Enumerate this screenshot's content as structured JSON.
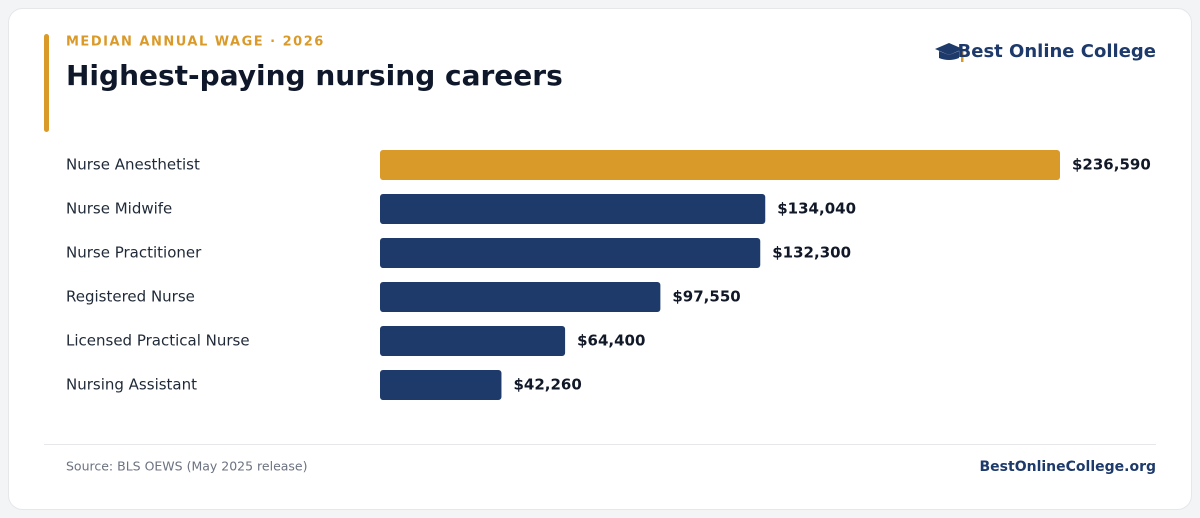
{
  "chart_data": {
    "type": "bar",
    "subtitle": "MEDIAN ANNUAL WAGE · 2026",
    "title": "Highest-paying nursing careers",
    "brand": "Best Online College",
    "categories": [
      "Nurse Anesthetist",
      "Nurse Midwife",
      "Nurse Practitioner",
      "Registered Nurse",
      "Licensed Practical Nurse",
      "Nursing Assistant"
    ],
    "values": [
      236590,
      134040,
      132300,
      97550,
      64400,
      42260
    ],
    "value_labels": [
      "$236,590",
      "$134,040",
      "$132,300",
      "$97,550",
      "$64,400",
      "$42,260"
    ],
    "colors": [
      "#da9a2a",
      "#1e3a6b",
      "#1e3a6b",
      "#1e3a6b",
      "#1e3a6b",
      "#1e3a6b"
    ],
    "source": "Source: BLS OEWS (May 2025 release)",
    "website": "BestOnlineCollege.org"
  }
}
